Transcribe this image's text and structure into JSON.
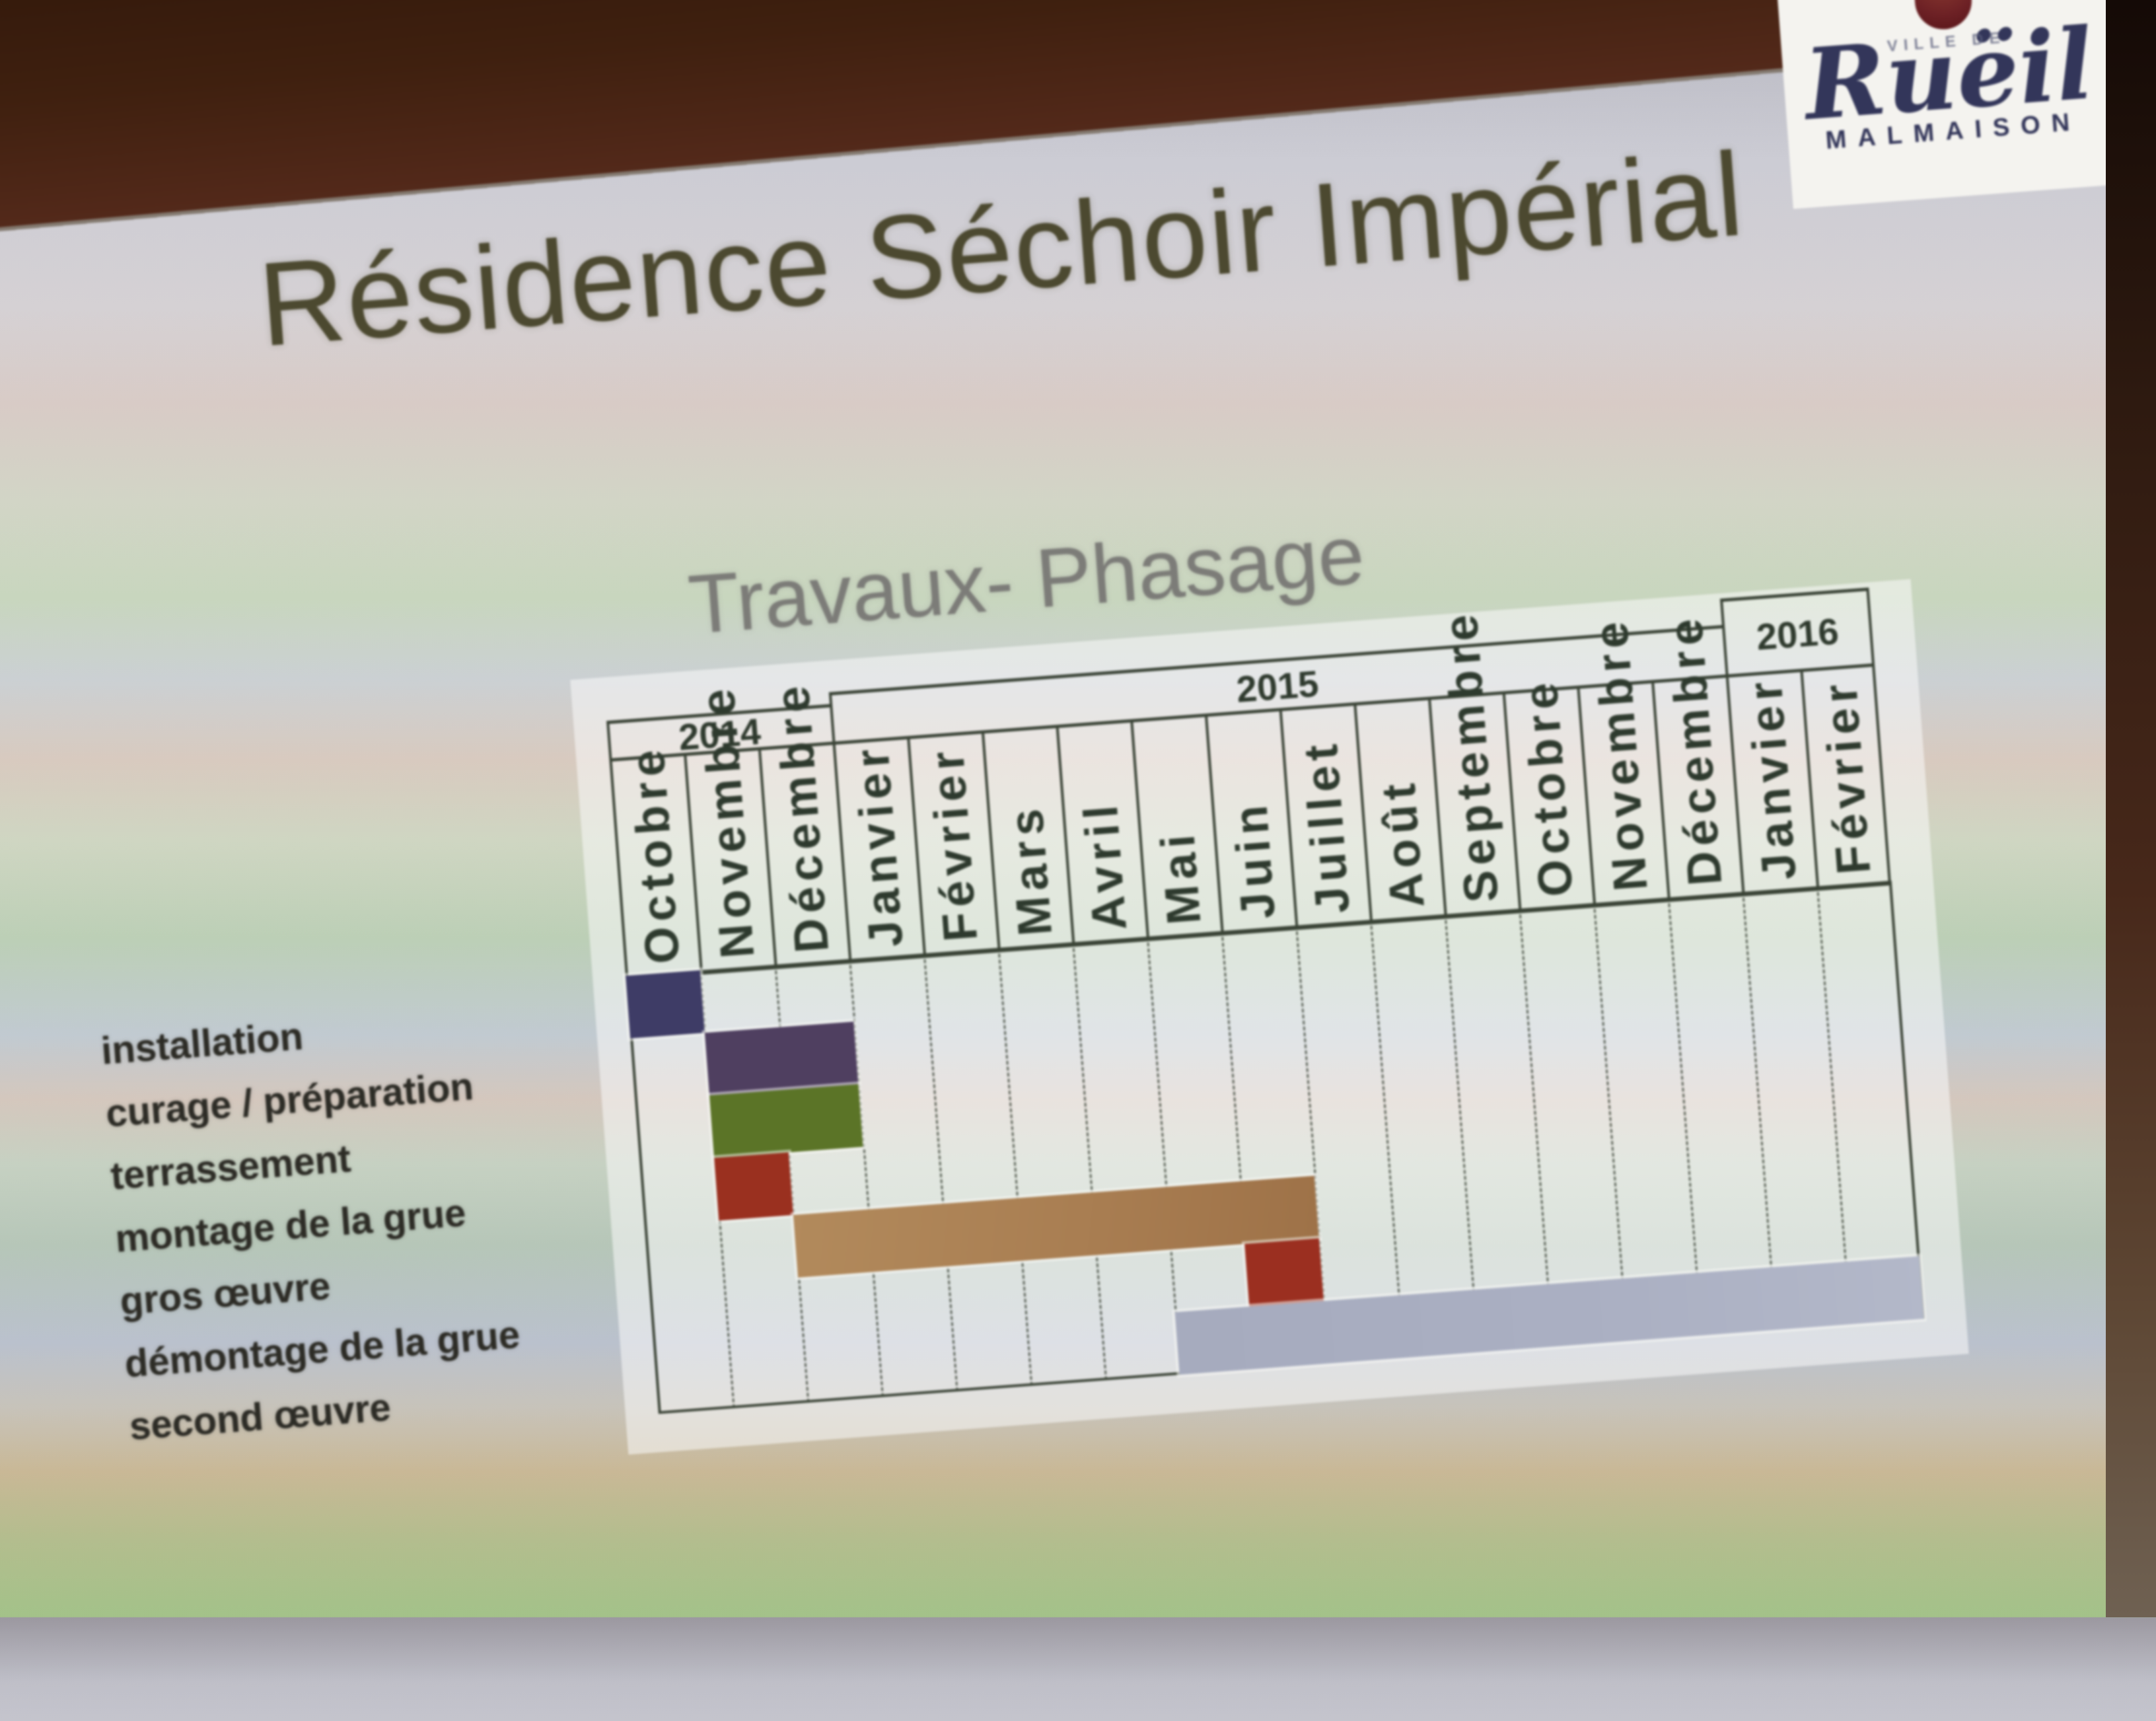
{
  "slide": {
    "title": "Résidence Séchoir Impérial",
    "subtitle": "Travaux- Phasage"
  },
  "logo": {
    "ville_de": "VILLE DE",
    "name_script": "Ruëil",
    "name_sub": "MALMAISON",
    "shield_color": "#6d2125",
    "text_color": "#33365a"
  },
  "colors": {
    "wall_dark_brown": "#2c1509",
    "table_line": "#3a4336",
    "title_text": "#4c4930",
    "subtitle_text": "#7c7c78",
    "task_label_text": "#2d2c26"
  },
  "chart_data": {
    "type": "bar",
    "variant": "gantt-timeline",
    "title": "Travaux- Phasage",
    "grid": "monthly columns, dashed vertical lines, no horizontal gridlines",
    "x_axis": {
      "unit": "month",
      "years": [
        {
          "label": "2014",
          "span": 3
        },
        {
          "label": "2015",
          "span": 12
        },
        {
          "label": "2016",
          "span": 2
        }
      ],
      "months": [
        "Octobre",
        "Novembre",
        "Décembre",
        "Janvier",
        "Février",
        "Mars",
        "Avril",
        "Mai",
        "Juin",
        "Juillet",
        "Août",
        "Septembre",
        "Octobre",
        "Novembre",
        "Décembre",
        "Janvier",
        "Février"
      ]
    },
    "tasks": [
      {
        "label": "installation",
        "start_index": 0,
        "duration_months": 1,
        "start": "Octobre 2014",
        "end": "Octobre 2014",
        "color": "#3e3c66"
      },
      {
        "label": "curage / préparation",
        "start_index": 1,
        "duration_months": 2,
        "start": "Novembre 2014",
        "end": "Décembre 2014",
        "color": "#4f3f60"
      },
      {
        "label": "terrassement",
        "start_index": 1,
        "duration_months": 2,
        "start": "Novembre 2014",
        "end": "Décembre 2014",
        "color": "#5b7427"
      },
      {
        "label": "montage de la grue",
        "start_index": 1,
        "duration_months": 1,
        "start": "Novembre 2014",
        "end": "Novembre 2014",
        "color": "#9a301f"
      },
      {
        "label": "gros œuvre",
        "start_index": 2,
        "duration_months": 7,
        "start": "Décembre 2014",
        "end": "Juin 2015",
        "color": "#a97e52"
      },
      {
        "label": "démontage de la grue",
        "start_index": 8,
        "duration_months": 1,
        "start": "Juin 2015",
        "end": "Juin 2015",
        "color": "#9b2f20"
      },
      {
        "label": "second œuvre",
        "start_index": 7,
        "duration_months": 10,
        "start": "Mai 2015",
        "end": "Février 2016",
        "color": "#a9aec2"
      }
    ]
  }
}
